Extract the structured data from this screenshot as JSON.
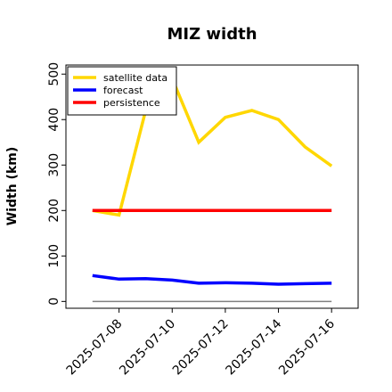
{
  "chart_data": {
    "type": "line",
    "title": "MIZ width",
    "xlabel": "",
    "ylabel": "Width (km)",
    "x": [
      "2025-07-07",
      "2025-07-08",
      "2025-07-09",
      "2025-07-10",
      "2025-07-11",
      "2025-07-12",
      "2025-07-13",
      "2025-07-14",
      "2025-07-15",
      "2025-07-16"
    ],
    "xticks": [
      "2025-07-08",
      "2025-07-10",
      "2025-07-12",
      "2025-07-14",
      "2025-07-16"
    ],
    "highlight_tick": "2025-07-08",
    "highlight_color": "#228B22",
    "ylim": [
      -15,
      520
    ],
    "yticks": [
      0,
      100,
      200,
      300,
      400,
      500
    ],
    "xlim": [
      "2025-07-06",
      "2025-07-17"
    ],
    "legend_position": "top-left",
    "baseline": 0,
    "series": [
      {
        "name": "satellite data",
        "color": "#FFD700",
        "values": [
          200,
          190,
          420,
          490,
          350,
          405,
          420,
          400,
          340,
          298
        ]
      },
      {
        "name": "forecast",
        "color": "#0000FF",
        "values": [
          57,
          49,
          50,
          47,
          40,
          41,
          40,
          38,
          39,
          40
        ]
      },
      {
        "name": "persistence",
        "color": "#FF0000",
        "values": [
          200,
          200,
          200,
          200,
          200,
          200,
          200,
          200,
          200,
          200
        ]
      }
    ]
  }
}
